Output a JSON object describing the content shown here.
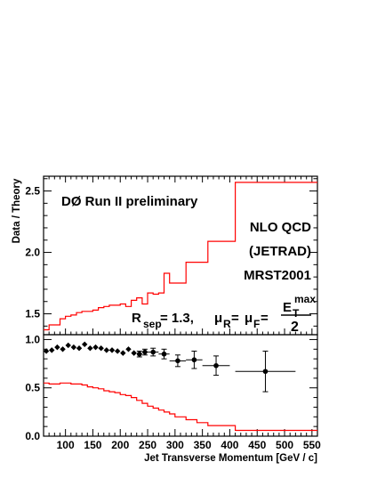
{
  "chart_data": [
    {
      "type": "line",
      "panel": "upper",
      "ylabel": "Data / Theory",
      "ylim": [
        1.33,
        2.62
      ],
      "xlim": [
        60,
        560
      ],
      "yticks": [
        1.5,
        2.0,
        2.5
      ],
      "ytick_labels": [
        "1.5",
        "2.0",
        "2.5"
      ],
      "annotations": {
        "experiment": "DØ Run II preliminary",
        "line1": "NLO QCD",
        "line2": "(JETRAD)",
        "line3": "MRST2001",
        "formula_parts": {
          "r": "R",
          "r_sub": "sep",
          "r_value": " = 1.3,",
          "mu": "μ",
          "mu_sub_r": "R",
          "eq": " = ",
          "mu_sub_f": "F",
          "eq2": " = ",
          "e": "E",
          "e_sub": "T",
          "e_sup": "max",
          "denominator": "2"
        }
      },
      "series": [
        {
          "color": "#ff0000",
          "edges": [
            60,
            70,
            80,
            90,
            100,
            110,
            120,
            130,
            140,
            150,
            160,
            170,
            180,
            190,
            200,
            210,
            220,
            230,
            240,
            250,
            260,
            270,
            280,
            290,
            300,
            320,
            340,
            360,
            410,
            560
          ],
          "values": [
            1.37,
            1.41,
            1.41,
            1.46,
            1.48,
            1.49,
            1.51,
            1.52,
            1.52,
            1.53,
            1.55,
            1.56,
            1.57,
            1.57,
            1.58,
            1.56,
            1.61,
            1.63,
            1.58,
            1.67,
            1.66,
            1.67,
            1.83,
            1.75,
            1.75,
            1.92,
            1.92,
            2.09,
            2.57
          ]
        }
      ]
    },
    {
      "type": "scatter",
      "panel": "lower",
      "xlabel": "Jet Transverse Momentum [GeV / c]",
      "xlim": [
        60,
        560
      ],
      "ylim": [
        0.0,
        1.05
      ],
      "xticks": [
        100,
        150,
        200,
        250,
        300,
        350,
        400,
        450,
        500,
        550
      ],
      "xtick_labels": [
        "100",
        "150",
        "200",
        "250",
        "300",
        "350",
        "400",
        "450",
        "500",
        "550"
      ],
      "yticks": [
        0.0,
        0.5,
        1.0
      ],
      "ytick_labels": [
        "0.0",
        "0.5",
        "1.0"
      ],
      "series": [
        {
          "marker": "diamond",
          "color": "#000000",
          "points": [
            {
              "x": 65,
              "y": 0.88,
              "err": 0.01
            },
            {
              "x": 75,
              "y": 0.89,
              "err": 0.01
            },
            {
              "x": 85,
              "y": 0.92,
              "err": 0.01
            },
            {
              "x": 95,
              "y": 0.9,
              "err": 0.01
            },
            {
              "x": 105,
              "y": 0.94,
              "err": 0.01
            },
            {
              "x": 115,
              "y": 0.92,
              "err": 0.01
            },
            {
              "x": 125,
              "y": 0.91,
              "err": 0.01
            },
            {
              "x": 135,
              "y": 0.95,
              "err": 0.01
            },
            {
              "x": 145,
              "y": 0.91,
              "err": 0.01
            },
            {
              "x": 155,
              "y": 0.92,
              "err": 0.01
            },
            {
              "x": 165,
              "y": 0.91,
              "err": 0.01
            },
            {
              "x": 175,
              "y": 0.89,
              "err": 0.01
            },
            {
              "x": 185,
              "y": 0.89,
              "err": 0.01
            },
            {
              "x": 195,
              "y": 0.88,
              "err": 0.01
            },
            {
              "x": 205,
              "y": 0.86,
              "err": 0.015
            },
            {
              "x": 215,
              "y": 0.9,
              "err": 0.015
            },
            {
              "x": 225,
              "y": 0.86,
              "err": 0.02
            }
          ]
        },
        {
          "marker": "circle",
          "color": "#000000",
          "points": [
            {
              "x": 235,
              "y": 0.85,
              "err": 0.03,
              "xerr": 5
            },
            {
              "x": 245,
              "y": 0.87,
              "err": 0.03,
              "xerr": 5
            },
            {
              "x": 260,
              "y": 0.87,
              "err": 0.04,
              "xerr": 10
            },
            {
              "x": 280,
              "y": 0.85,
              "err": 0.05,
              "xerr": 10
            },
            {
              "x": 305,
              "y": 0.78,
              "err": 0.06,
              "xerr": 15
            },
            {
              "x": 335,
              "y": 0.79,
              "err": 0.09,
              "xerr": 15
            },
            {
              "x": 375,
              "y": 0.73,
              "err": 0.1,
              "xerr": 25
            },
            {
              "x": 465,
              "y": 0.67,
              "err": 0.21,
              "xerr": 55
            }
          ]
        },
        {
          "type": "step",
          "color": "#ff0000",
          "edges": [
            60,
            70,
            80,
            90,
            100,
            110,
            120,
            130,
            140,
            150,
            160,
            170,
            180,
            190,
            200,
            210,
            220,
            230,
            240,
            250,
            260,
            270,
            280,
            290,
            300,
            320,
            340,
            360,
            410,
            560
          ],
          "values": [
            0.55,
            0.54,
            0.54,
            0.55,
            0.55,
            0.54,
            0.54,
            0.53,
            0.51,
            0.5,
            0.49,
            0.47,
            0.46,
            0.45,
            0.43,
            0.42,
            0.4,
            0.37,
            0.34,
            0.31,
            0.29,
            0.27,
            0.25,
            0.23,
            0.2,
            0.17,
            0.14,
            0.11,
            0.06
          ]
        }
      ]
    }
  ]
}
